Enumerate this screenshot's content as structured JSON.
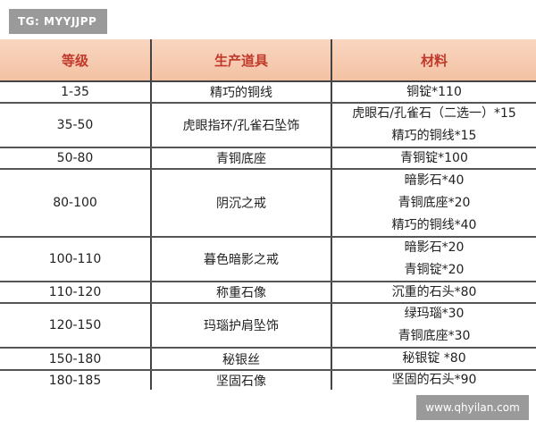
{
  "watermarks": {
    "top_left": "TG: MYYJJPP",
    "bottom_right": "www.qhyilan.com"
  },
  "table": {
    "headers": [
      "等级",
      "生产道具",
      "材料"
    ],
    "rows": [
      {
        "level": "1-35",
        "item": "精巧的铜线",
        "materials": [
          "铜锭*110"
        ]
      },
      {
        "level": "35-50",
        "item": "虎眼指环/孔雀石坠饰",
        "materials": [
          "虎眼石/孔雀石（二选一）*15",
          "精巧的铜线*15"
        ]
      },
      {
        "level": "50-80",
        "item": "青铜底座",
        "materials": [
          "青铜锭*100"
        ]
      },
      {
        "level": "80-100",
        "item": "阴沉之戒",
        "materials": [
          "暗影石*40",
          "青铜底座*20",
          "精巧的铜线*40"
        ]
      },
      {
        "level": "100-110",
        "item": "暮色暗影之戒",
        "materials": [
          "暗影石*20",
          "青铜锭*20"
        ]
      },
      {
        "level": "110-120",
        "item": "称重石像",
        "materials": [
          "沉重的石头*80"
        ]
      },
      {
        "level": "120-150",
        "item": "玛瑙护肩坠饰",
        "materials": [
          "绿玛瑙*30",
          "青铜底座*30"
        ]
      },
      {
        "level": "150-180",
        "item": "秘银丝",
        "materials": [
          "秘银锭 *80"
        ]
      },
      {
        "level": "180-185",
        "item": "坚固石像",
        "materials": [
          "坚固的石头*90"
        ]
      }
    ]
  }
}
